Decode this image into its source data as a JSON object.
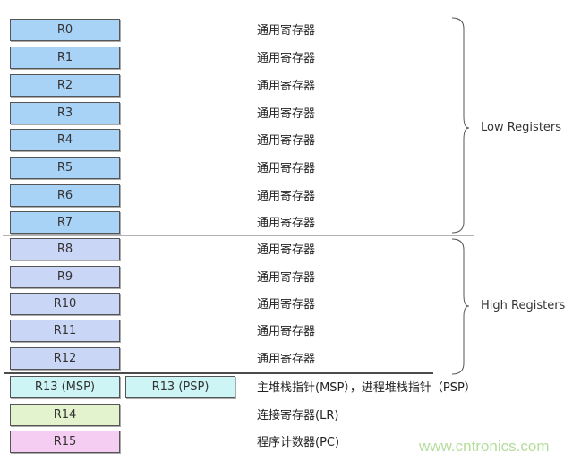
{
  "registers": [
    {
      "name": "R0",
      "desc": "通用寄存器",
      "color": "#a8d2f6"
    },
    {
      "name": "R1",
      "desc": "通用寄存器",
      "color": "#a8d2f6"
    },
    {
      "name": "R2",
      "desc": "通用寄存器",
      "color": "#a8d2f6"
    },
    {
      "name": "R3",
      "desc": "通用寄存器",
      "color": "#a8d2f6"
    },
    {
      "name": "R4",
      "desc": "通用寄存器",
      "color": "#a8d2f6"
    },
    {
      "name": "R5",
      "desc": "通用寄存器",
      "color": "#a8d2f6"
    },
    {
      "name": "R6",
      "desc": "通用寄存器",
      "color": "#a8d2f6"
    },
    {
      "name": "R7",
      "desc": "通用寄存器",
      "color": "#a8d2f6"
    },
    {
      "name": "R8",
      "desc": "通用寄存器",
      "color": "#cad6f5"
    },
    {
      "name": "R9",
      "desc": "通用寄存器",
      "color": "#cad6f5"
    },
    {
      "name": "R10",
      "desc": "通用寄存器",
      "color": "#cad6f5"
    },
    {
      "name": "R11",
      "desc": "通用寄存器",
      "color": "#cad6f5"
    },
    {
      "name": "R12",
      "desc": "通用寄存器",
      "color": "#cad6f5"
    },
    {
      "name": "R13 (MSP)",
      "alt": "R13 (PSP)",
      "desc": "主堆栈指针(MSP），进程堆栈指针（PSP）",
      "color": "#cdf5f6"
    },
    {
      "name": "R14",
      "desc": "连接寄存器(LR)",
      "color": "#e3f3cd"
    },
    {
      "name": "R15",
      "desc": "程序计数器(PC)",
      "color": "#f6cdf2"
    }
  ],
  "groups": {
    "low": "Low Registers",
    "high": "High Registers"
  },
  "watermark": "www.cntronics.com"
}
